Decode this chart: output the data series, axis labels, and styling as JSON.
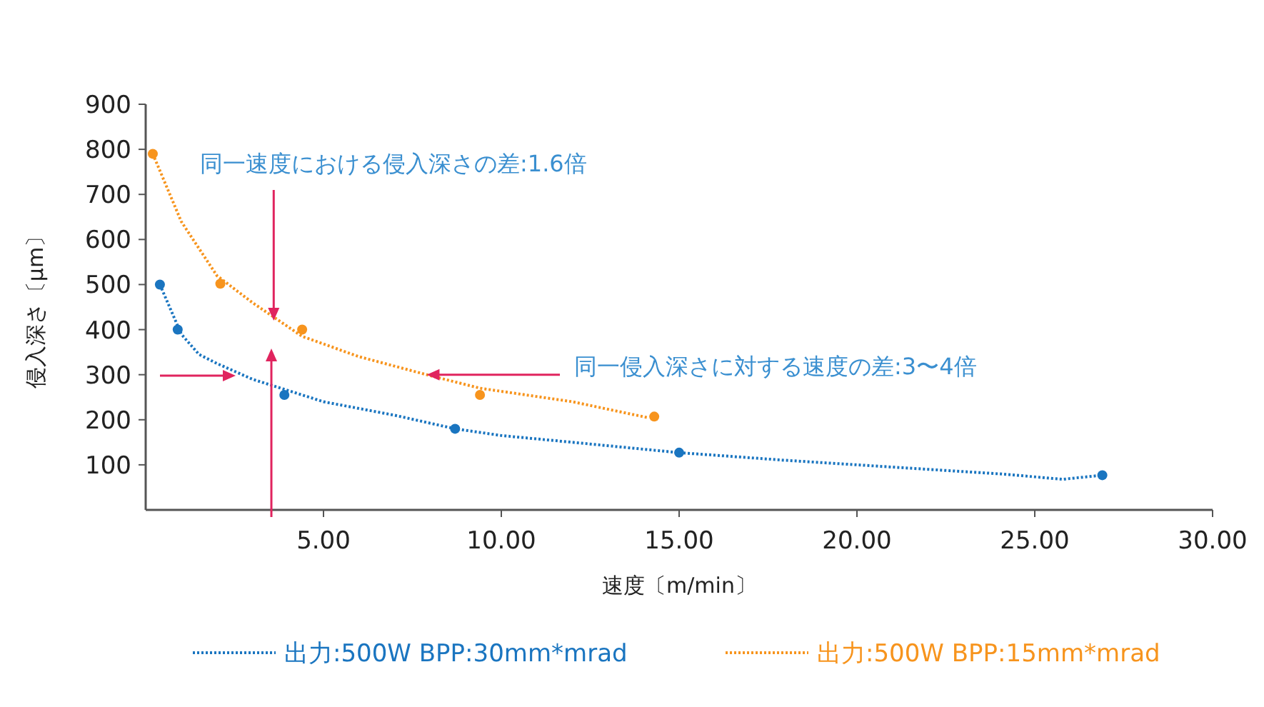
{
  "chart_data": {
    "type": "line",
    "xlabel": "速度〔m/min〕",
    "ylabel": "侵入深さ〔μm〕",
    "xlim": [
      0,
      30
    ],
    "xticks": [
      {
        "value": 5,
        "label": "5.00"
      },
      {
        "value": 10,
        "label": "10.00"
      },
      {
        "value": 15,
        "label": "15.00"
      },
      {
        "value": 20,
        "label": "20.00"
      },
      {
        "value": 25,
        "label": "25.00"
      },
      {
        "value": 30,
        "label": "30.00"
      }
    ],
    "ylim": [
      0,
      900
    ],
    "yticks": [
      100,
      200,
      300,
      400,
      500,
      600,
      700,
      800,
      900
    ],
    "grid": false,
    "legend": "bottom",
    "annotations": [
      {
        "text": "同一速度における侵入深さの差:1.6倍",
        "x": 3.6,
        "y": 420
      },
      {
        "text": "同一侵入深さに対する速度の差:3〜4倍",
        "x": 7.9,
        "y": 300
      }
    ],
    "series": [
      {
        "name": "出力:500W BPP:30mm*mrad",
        "color": "#1a75c0",
        "marker": "none",
        "line_style": "dotted",
        "x": [
          0.4,
          1,
          1.5,
          2,
          3,
          3.6,
          5,
          7,
          8.7,
          10,
          12,
          15,
          18,
          20,
          22,
          24,
          25.8,
          26.9
        ],
        "values": [
          500,
          390,
          345,
          325,
          290,
          275,
          240,
          210,
          180,
          165,
          150,
          127,
          110,
          100,
          90,
          80,
          68,
          77
        ]
      },
      {
        "name": "出力:500W BPP:15mm*mrad",
        "color": "#f7941d",
        "marker": "none",
        "line_style": "dotted",
        "x": [
          0.2,
          1,
          2,
          3,
          4.4,
          6,
          7.9,
          9.4,
          12,
          14.1
        ],
        "values": [
          790,
          640,
          520,
          460,
          385,
          340,
          300,
          270,
          240,
          205
        ]
      },
      {
        "type": "scatter",
        "color": "#1a75c0",
        "marker": "circle",
        "x": [
          0.4,
          0.9,
          3.9,
          8.7,
          15,
          26.9
        ],
        "values": [
          500,
          400,
          255,
          180,
          127,
          77
        ]
      },
      {
        "type": "scatter",
        "color": "#f7941d",
        "marker": "circle",
        "x": [
          0.2,
          2.1,
          4.4,
          9.4,
          14.3
        ],
        "values": [
          790,
          502,
          400,
          255,
          207
        ]
      }
    ]
  }
}
